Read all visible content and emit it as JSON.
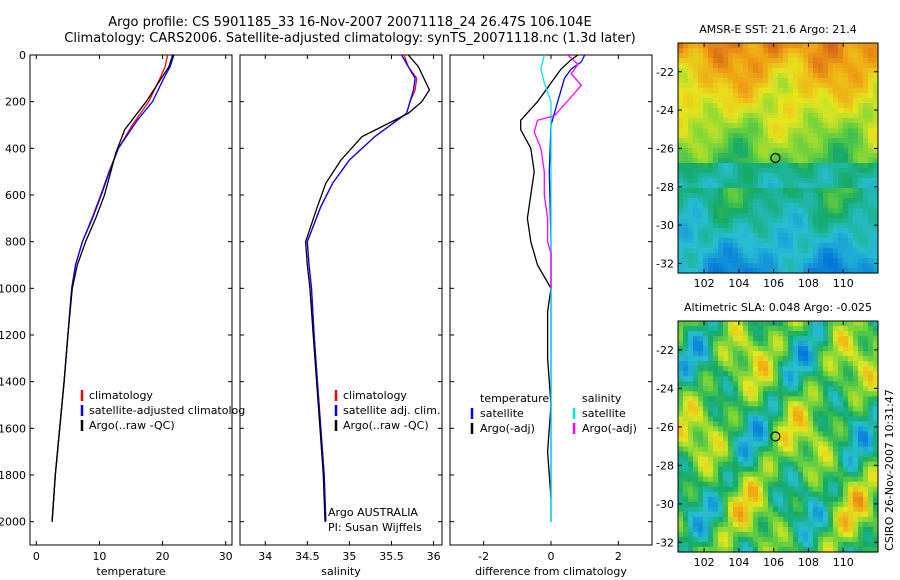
{
  "title": {
    "line1": "Argo profile: CS 5901185_33 16-Nov-2007 20071118_24 26.47S 106.104E",
    "line2": "Climatology: CARS2006. Satellite-adjusted climatology: synTS_20071118.nc (1.3d later)"
  },
  "side_label": "CSIRO 26-Nov-2007 10:31:47",
  "colors": {
    "climatology": "#ff0000",
    "satellite": "#0000ff",
    "argo": "#000000",
    "salinity_sat": "#00e5e5",
    "salinity_argo": "#ff00ff"
  },
  "chart_data": [
    {
      "type": "line",
      "id": "temperature",
      "xlabel": "temperature",
      "ylabel": "",
      "xlim": [
        -1,
        31
      ],
      "ylim": [
        0,
        2100
      ],
      "y_reversed": true,
      "xticks": [
        0,
        10,
        20,
        30
      ],
      "yticks": [
        0,
        200,
        400,
        600,
        800,
        1000,
        1200,
        1400,
        1600,
        1800,
        2000
      ],
      "legend": [
        "climatology",
        "satellite-adjusted climatolog",
        "Argo(..raw -QC)"
      ],
      "legend_colors": [
        "#ff0000",
        "#0000ff",
        "#000000"
      ],
      "series": [
        {
          "name": "climatology",
          "color": "#ff0000",
          "points": [
            [
              20.8,
              0
            ],
            [
              20.4,
              50
            ],
            [
              19.6,
              100
            ],
            [
              17.8,
              200
            ],
            [
              15.2,
              300
            ],
            [
              13.0,
              400
            ],
            [
              11.5,
              500
            ],
            [
              10.2,
              600
            ],
            [
              8.8,
              700
            ],
            [
              7.3,
              800
            ],
            [
              6.2,
              900
            ],
            [
              5.6,
              1000
            ],
            [
              5.0,
              1200
            ],
            [
              4.4,
              1400
            ],
            [
              3.7,
              1600
            ],
            [
              3.0,
              1800
            ],
            [
              2.5,
              2000
            ]
          ]
        },
        {
          "name": "satellite-adjusted climatology",
          "color": "#0000ff",
          "points": [
            [
              21.8,
              0
            ],
            [
              21.2,
              50
            ],
            [
              20.2,
              100
            ],
            [
              18.4,
              200
            ],
            [
              16.0,
              280
            ],
            [
              13.0,
              400
            ],
            [
              11.6,
              500
            ],
            [
              10.3,
              600
            ],
            [
              8.9,
              700
            ],
            [
              7.3,
              800
            ],
            [
              6.2,
              900
            ],
            [
              5.6,
              1000
            ],
            [
              5.0,
              1200
            ],
            [
              4.4,
              1400
            ],
            [
              3.7,
              1600
            ],
            [
              3.0,
              1800
            ],
            [
              2.5,
              2000
            ]
          ]
        },
        {
          "name": "Argo(..raw -QC)",
          "color": "#000000",
          "points": [
            [
              21.6,
              0
            ],
            [
              21.0,
              50
            ],
            [
              19.8,
              100
            ],
            [
              17.4,
              200
            ],
            [
              14.0,
              320
            ],
            [
              12.6,
              420
            ],
            [
              11.8,
              500
            ],
            [
              10.8,
              600
            ],
            [
              9.4,
              700
            ],
            [
              7.8,
              800
            ],
            [
              6.5,
              900
            ],
            [
              5.7,
              1000
            ],
            [
              5.0,
              1200
            ],
            [
              4.4,
              1400
            ],
            [
              3.7,
              1600
            ],
            [
              3.0,
              1800
            ],
            [
              2.5,
              2000
            ]
          ]
        }
      ]
    },
    {
      "type": "line",
      "id": "salinity",
      "xlabel": "salinity",
      "ylabel": "",
      "xlim": [
        33.7,
        36.1
      ],
      "ylim": [
        0,
        2100
      ],
      "y_reversed": true,
      "xticks": [
        34,
        34.5,
        35,
        35.5,
        36
      ],
      "legend": [
        "climatology",
        "satellite adj. clim.",
        "Argo(..raw -QC)"
      ],
      "legend_colors": [
        "#ff0000",
        "#0000ff",
        "#000000"
      ],
      "annotation": {
        "line1": "Argo AUSTRALIA",
        "line2": "PI: Susan Wijffels"
      },
      "series": [
        {
          "name": "climatology",
          "color": "#ff0000",
          "points": [
            [
              35.65,
              0
            ],
            [
              35.7,
              50
            ],
            [
              35.8,
              100
            ],
            [
              35.78,
              150
            ],
            [
              35.72,
              200
            ],
            [
              35.68,
              250
            ],
            [
              35.3,
              350
            ],
            [
              35.0,
              450
            ],
            [
              34.8,
              550
            ],
            [
              34.66,
              650
            ],
            [
              34.5,
              800
            ],
            [
              34.52,
              900
            ],
            [
              34.55,
              1000
            ],
            [
              34.58,
              1200
            ],
            [
              34.62,
              1400
            ],
            [
              34.66,
              1600
            ],
            [
              34.7,
              1800
            ],
            [
              34.72,
              2000
            ]
          ]
        },
        {
          "name": "satellite adj. clim.",
          "color": "#0000ff",
          "points": [
            [
              35.62,
              0
            ],
            [
              35.7,
              50
            ],
            [
              35.78,
              100
            ],
            [
              35.76,
              150
            ],
            [
              35.72,
              200
            ],
            [
              35.68,
              250
            ],
            [
              35.3,
              350
            ],
            [
              35.0,
              450
            ],
            [
              34.8,
              550
            ],
            [
              34.66,
              650
            ],
            [
              34.5,
              800
            ],
            [
              34.52,
              900
            ],
            [
              34.55,
              1000
            ],
            [
              34.58,
              1200
            ],
            [
              34.62,
              1400
            ],
            [
              34.66,
              1600
            ],
            [
              34.7,
              1800
            ],
            [
              34.72,
              2000
            ]
          ]
        },
        {
          "name": "Argo(..raw -QC)",
          "color": "#000000",
          "points": [
            [
              35.7,
              0
            ],
            [
              35.82,
              50
            ],
            [
              35.95,
              150
            ],
            [
              35.86,
              200
            ],
            [
              35.7,
              250
            ],
            [
              35.15,
              350
            ],
            [
              34.9,
              450
            ],
            [
              34.72,
              550
            ],
            [
              34.62,
              650
            ],
            [
              34.48,
              800
            ],
            [
              34.5,
              900
            ],
            [
              34.53,
              1000
            ],
            [
              34.57,
              1200
            ],
            [
              34.61,
              1400
            ],
            [
              34.65,
              1600
            ],
            [
              34.69,
              1800
            ],
            [
              34.71,
              2000
            ]
          ]
        }
      ]
    },
    {
      "type": "line",
      "id": "difference",
      "xlabel": "difference from climatology",
      "ylabel": "",
      "xlim": [
        -3,
        3
      ],
      "ylim": [
        0,
        2100
      ],
      "y_reversed": true,
      "xticks": [
        -2,
        0,
        2
      ],
      "legend_groups": [
        {
          "title": "temperature",
          "items": [
            "satellite",
            "Argo(-adj)"
          ],
          "colors": [
            "#0000ff",
            "#000000"
          ]
        },
        {
          "title": "salinity",
          "items": [
            "satellite",
            "Argo(-adj)"
          ],
          "colors": [
            "#00e5e5",
            "#ff00ff"
          ]
        }
      ],
      "series": [
        {
          "name": "temperature satellite",
          "color": "#0000ff",
          "points": [
            [
              1.0,
              0
            ],
            [
              0.9,
              30
            ],
            [
              0.6,
              60
            ],
            [
              0.4,
              100
            ],
            [
              0.2,
              200
            ],
            [
              0.0,
              300
            ],
            [
              -0.05,
              500
            ],
            [
              0.0,
              800
            ],
            [
              0.0,
              1000
            ],
            [
              0.0,
              1200
            ],
            [
              0.0,
              1500
            ],
            [
              0.0,
              1800
            ],
            [
              0.0,
              2000
            ]
          ]
        },
        {
          "name": "temperature Argo(-adj)",
          "color": "#000000",
          "points": [
            [
              0.8,
              0
            ],
            [
              0.6,
              20
            ],
            [
              0.3,
              60
            ],
            [
              0.1,
              100
            ],
            [
              -0.4,
              200
            ],
            [
              -0.9,
              280
            ],
            [
              -0.9,
              320
            ],
            [
              -0.6,
              400
            ],
            [
              -0.5,
              500
            ],
            [
              -0.6,
              600
            ],
            [
              -0.7,
              700
            ],
            [
              -0.6,
              800
            ],
            [
              -0.4,
              900
            ],
            [
              0.0,
              1000
            ],
            [
              -0.1,
              1100
            ],
            [
              -0.1,
              1300
            ],
            [
              0.0,
              1500
            ],
            [
              -0.1,
              1700
            ],
            [
              0.0,
              1900
            ]
          ]
        },
        {
          "name": "salinity satellite",
          "color": "#00e5e5",
          "points": [
            [
              -0.2,
              0
            ],
            [
              -0.3,
              60
            ],
            [
              -0.2,
              120
            ],
            [
              0.0,
              200
            ],
            [
              0.0,
              300
            ],
            [
              0.0,
              500
            ],
            [
              0.0,
              800
            ],
            [
              0.0,
              1000
            ],
            [
              0.0,
              1200
            ],
            [
              0.0,
              1500
            ],
            [
              0.0,
              1800
            ],
            [
              0.0,
              2000
            ]
          ]
        },
        {
          "name": "salinity Argo(-adj)",
          "color": "#ff00ff",
          "points": [
            [
              0.5,
              0
            ],
            [
              0.8,
              40
            ],
            [
              0.6,
              80
            ],
            [
              0.9,
              130
            ],
            [
              0.6,
              180
            ],
            [
              0.1,
              260
            ],
            [
              -0.4,
              280
            ],
            [
              -0.5,
              330
            ],
            [
              -0.3,
              400
            ],
            [
              -0.2,
              500
            ],
            [
              -0.2,
              600
            ],
            [
              -0.1,
              700
            ],
            [
              -0.1,
              800
            ],
            [
              0.0,
              850
            ],
            [
              0.0,
              1000
            ]
          ]
        }
      ]
    },
    {
      "type": "heatmap",
      "id": "sst_map",
      "title": "AMSR-E SST: 21.6 Argo: 21.4",
      "xlim": [
        100.5,
        112
      ],
      "ylim": [
        -32.5,
        -20.5
      ],
      "xticks": [
        102,
        104,
        106,
        108,
        110
      ],
      "yticks": [
        -22,
        -24,
        -26,
        -28,
        -30,
        -32
      ],
      "marker": [
        106.1,
        -26.5
      ]
    },
    {
      "type": "heatmap",
      "id": "sla_map",
      "title": "Altimetric SLA: 0.048 Argo: -0.025",
      "xlim": [
        100.5,
        112
      ],
      "ylim": [
        -32.5,
        -20.5
      ],
      "xticks": [
        102,
        104,
        106,
        108,
        110
      ],
      "yticks": [
        -22,
        -24,
        -26,
        -28,
        -30,
        -32
      ],
      "marker": [
        106.1,
        -26.5
      ]
    }
  ]
}
